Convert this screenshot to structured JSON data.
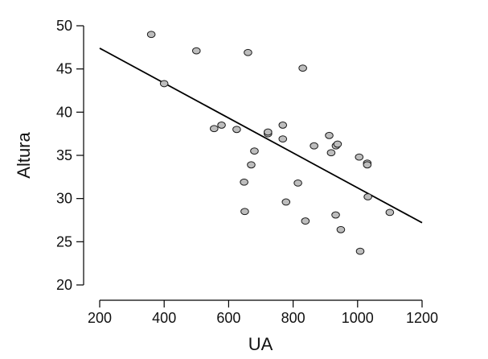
{
  "chart_data": {
    "type": "scatter",
    "xlabel": "UA",
    "ylabel": "Altura",
    "xlim": [
      200,
      1200
    ],
    "ylim": [
      20,
      50
    ],
    "x_ticks": [
      200,
      400,
      600,
      800,
      1000,
      1200
    ],
    "y_ticks": [
      20,
      25,
      30,
      35,
      40,
      45,
      50
    ],
    "x_tick_labels": [
      "200",
      "400",
      "600",
      "800",
      "1000",
      "1200"
    ],
    "y_tick_labels": [
      "20",
      "25",
      "30",
      "35",
      40,
      "45",
      "50"
    ],
    "grid": false,
    "points": [
      {
        "x": 360,
        "y": 49.0
      },
      {
        "x": 400,
        "y": 43.3
      },
      {
        "x": 500,
        "y": 47.1
      },
      {
        "x": 660,
        "y": 46.9
      },
      {
        "x": 830,
        "y": 45.1
      },
      {
        "x": 555,
        "y": 38.1
      },
      {
        "x": 578,
        "y": 38.5
      },
      {
        "x": 625,
        "y": 38.0
      },
      {
        "x": 722,
        "y": 37.5
      },
      {
        "x": 722,
        "y": 37.7
      },
      {
        "x": 768,
        "y": 38.5
      },
      {
        "x": 768,
        "y": 36.9
      },
      {
        "x": 680,
        "y": 35.5
      },
      {
        "x": 670,
        "y": 33.9
      },
      {
        "x": 648,
        "y": 31.9
      },
      {
        "x": 650,
        "y": 28.5
      },
      {
        "x": 778,
        "y": 29.6
      },
      {
        "x": 815,
        "y": 31.8
      },
      {
        "x": 838,
        "y": 27.4
      },
      {
        "x": 865,
        "y": 36.1
      },
      {
        "x": 912,
        "y": 37.3
      },
      {
        "x": 918,
        "y": 35.3
      },
      {
        "x": 933,
        "y": 36.1
      },
      {
        "x": 938,
        "y": 36.3
      },
      {
        "x": 932,
        "y": 28.1
      },
      {
        "x": 948,
        "y": 26.4
      },
      {
        "x": 1005,
        "y": 34.8
      },
      {
        "x": 1008,
        "y": 23.9
      },
      {
        "x": 1030,
        "y": 34.1
      },
      {
        "x": 1030,
        "y": 33.9
      },
      {
        "x": 1032,
        "y": 30.2
      },
      {
        "x": 1100,
        "y": 28.4
      }
    ],
    "regression_line": {
      "x": [
        200,
        1200
      ],
      "y": [
        47.4,
        27.2
      ]
    },
    "colors": {
      "point_fill": "#bdbdbd",
      "point_stroke": "#1a1a1a",
      "line": "#000000",
      "axis": "#000000"
    }
  }
}
